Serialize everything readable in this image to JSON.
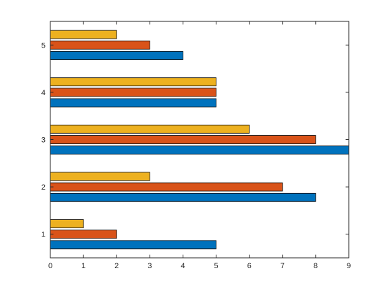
{
  "chart_data": {
    "type": "bar",
    "orientation": "horizontal",
    "title": "",
    "xlabel": "",
    "ylabel": "",
    "categories": [
      "1",
      "2",
      "3",
      "4",
      "5"
    ],
    "xlim": [
      0,
      9
    ],
    "x_ticks": [
      "0",
      "1",
      "2",
      "3",
      "4",
      "5",
      "6",
      "7",
      "8",
      "9"
    ],
    "grid": false,
    "legend": "none",
    "series": [
      {
        "color": "#0072BD",
        "values": [
          5,
          8,
          9,
          5,
          4
        ]
      },
      {
        "color": "#D95319",
        "values": [
          2,
          7,
          8,
          5,
          3
        ]
      },
      {
        "color": "#EDB120",
        "values": [
          1,
          3,
          6,
          5,
          2
        ]
      }
    ]
  }
}
